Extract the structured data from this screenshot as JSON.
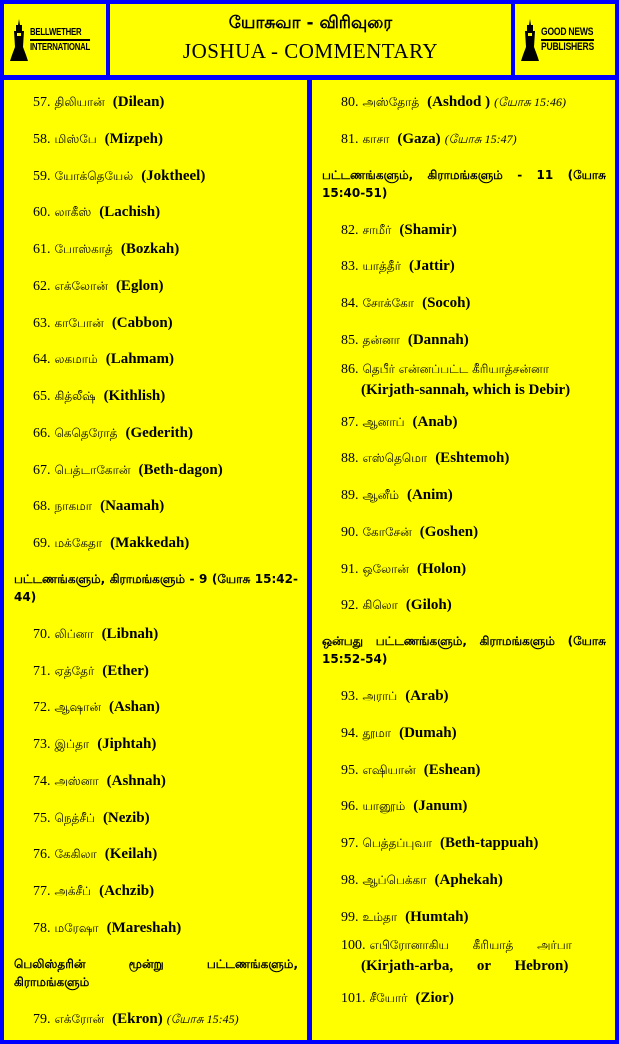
{
  "header": {
    "title_tamil": "யோசுவா  - விரிவுரை",
    "title_english": "JOSHUA -  COMMENTARY",
    "logo_left": {
      "line1": "BELLWETHER",
      "line2": "INTERNATIONAL",
      "icon": "bell-tower-icon"
    },
    "logo_right": {
      "line1": "GOOD NEWS",
      "line2": "PUBLISHERS",
      "icon": "bell-tower-icon"
    }
  },
  "colors": {
    "background": "#0000ff",
    "panel": "#ffff00",
    "text": "#000000"
  },
  "left_column": [
    {
      "type": "item",
      "num": "57.",
      "tamil": "திலியான்",
      "english": "(Dilean)"
    },
    {
      "type": "item",
      "num": "58.",
      "tamil": "மிஸ்பே",
      "english": "(Mizpeh)"
    },
    {
      "type": "item",
      "num": "59.",
      "tamil": "யோக்தெயேல்",
      "english": "(Joktheel)"
    },
    {
      "type": "item",
      "num": "60.",
      "tamil": "லாகீஸ்",
      "english": "(Lachish)"
    },
    {
      "type": "item",
      "num": "61.",
      "tamil": "போஸ்காத்",
      "english": "(Bozkah)"
    },
    {
      "type": "item",
      "num": "62.",
      "tamil": "எக்லோன்",
      "english": "(Eglon)"
    },
    {
      "type": "item",
      "num": "63.",
      "tamil": "காபோன்",
      "english": "(Cabbon)"
    },
    {
      "type": "item",
      "num": "64.",
      "tamil": "லகமாம்",
      "english": "(Lahmam)"
    },
    {
      "type": "item",
      "num": "65.",
      "tamil": "கித்லீஷ்",
      "english": "(Kithlish)"
    },
    {
      "type": "item",
      "num": "66.",
      "tamil": "கெதெரோத்",
      "english": "(Gederith)"
    },
    {
      "type": "item",
      "num": "67.",
      "tamil": "பெத்டாகோன்",
      "english": "(Beth-dagon)"
    },
    {
      "type": "item",
      "num": "68.",
      "tamil": "நாகமா",
      "english": "(Naamah)"
    },
    {
      "type": "item",
      "num": "69.",
      "tamil": "மக்கேதா",
      "english": "(Makkedah)"
    },
    {
      "type": "heading",
      "text": "பட்டணங்களும், கிராமங்களும் - 9 (யோசு 15:42-44)"
    },
    {
      "type": "item",
      "num": "70.",
      "tamil": "லிப்னா",
      "english": "(Libnah)"
    },
    {
      "type": "item",
      "num": "71.",
      "tamil": "ஏத்தேர்",
      "english": "(Ether)"
    },
    {
      "type": "item",
      "num": "72.",
      "tamil": "ஆஷான்",
      "english": "(Ashan)"
    },
    {
      "type": "item",
      "num": "73.",
      "tamil": "இப்தா",
      "english": "(Jiphtah)"
    },
    {
      "type": "item",
      "num": "74.",
      "tamil": "அஸ்னா",
      "english": "(Ashnah)"
    },
    {
      "type": "item",
      "num": "75.",
      "tamil": "நெத்சீப்",
      "english": "(Nezib)"
    },
    {
      "type": "item",
      "num": "76.",
      "tamil": "கேகிலா",
      "english": "(Keilah)"
    },
    {
      "type": "item",
      "num": "77.",
      "tamil": "அக்சீப்",
      "english": "(Achzib)"
    },
    {
      "type": "item",
      "num": "78.",
      "tamil": "மரேஷா",
      "english": "(Mareshah)"
    },
    {
      "type": "heading",
      "text": "பெலிஸ்தரின் மூன்று பட்டணங்களும், கிராமங்களும்"
    },
    {
      "type": "item",
      "num": "79.",
      "tamil": "எக்ரோன்",
      "english": "(Ekron)",
      "ref": "(யோசு 15:45)"
    }
  ],
  "right_column": [
    {
      "type": "item",
      "num": "80.",
      "tamil": "அஸ்தோத்",
      "english": "(Ashdod )",
      "ref": "(யோசு 15:46)"
    },
    {
      "type": "item",
      "num": "81.",
      "tamil": "காசா",
      "english": "(Gaza)",
      "ref": "(யோசு 15:47)"
    },
    {
      "type": "heading",
      "text": "பட்டணங்களும், கிராமங்களும் - 11 (யோசு 15:40-51)"
    },
    {
      "type": "item",
      "num": "82.",
      "tamil": "சாமீர்",
      "english": "(Shamir)"
    },
    {
      "type": "item",
      "num": "83.",
      "tamil": "யாத்தீர்",
      "english": "(Jattir)"
    },
    {
      "type": "item",
      "num": "84.",
      "tamil": "சோக்கோ",
      "english": "(Socoh)"
    },
    {
      "type": "item",
      "num": "85.",
      "tamil": "தன்னா",
      "english": "(Dannah)"
    },
    {
      "type": "item2",
      "num": "86.",
      "tamil": "தெபீர் என்னப்பட்ட கீரியாத்சன்னா",
      "english": "(Kirjath-sannah, which is Debir)"
    },
    {
      "type": "item",
      "num": "87.",
      "tamil": "ஆனாப்",
      "english": "(Anab)"
    },
    {
      "type": "item",
      "num": "88.",
      "tamil": "எஸ்தெமொ",
      "english": "(Eshtemoh)"
    },
    {
      "type": "item",
      "num": "89.",
      "tamil": "ஆனீம்",
      "english": "(Anim)"
    },
    {
      "type": "item",
      "num": "90.",
      "tamil": "கோசேன்",
      "english": "(Goshen)"
    },
    {
      "type": "item",
      "num": "91.",
      "tamil": "ஒலோன்",
      "english": "(Holon)"
    },
    {
      "type": "item",
      "num": "92.",
      "tamil": "கிலொ",
      "english": "(Giloh)"
    },
    {
      "type": "heading",
      "text": "ஒன்பது பட்டணங்களும், கிராமங்களும் (யோசு 15:52-54)"
    },
    {
      "type": "item",
      "num": "93.",
      "tamil": "அராப்",
      "english": "(Arab)"
    },
    {
      "type": "item",
      "num": "94.",
      "tamil": "தூமா",
      "english": "(Dumah)"
    },
    {
      "type": "item",
      "num": "95.",
      "tamil": "எஷியான்",
      "english": "(Eshean)"
    },
    {
      "type": "item",
      "num": "96.",
      "tamil": "யானூம்",
      "english": "(Janum)"
    },
    {
      "type": "item",
      "num": "97.",
      "tamil": "பெத்தப்புவா",
      "english": "(Beth-tappuah)"
    },
    {
      "type": "item",
      "num": "98.",
      "tamil": "ஆப்பெக்கா",
      "english": "(Aphekah)"
    },
    {
      "type": "item",
      "num": "99.",
      "tamil": "உம்தா",
      "english": "(Humtah)"
    },
    {
      "type": "item2",
      "num": "100.",
      "tamil": "எபிரோனாகிய கீரியாத் அர்பா",
      "english": "(Kirjath-arba, or Hebron)",
      "wide": true
    },
    {
      "type": "item",
      "num": "101.",
      "tamil": "சீயோர்",
      "english": "(Zior)"
    }
  ]
}
